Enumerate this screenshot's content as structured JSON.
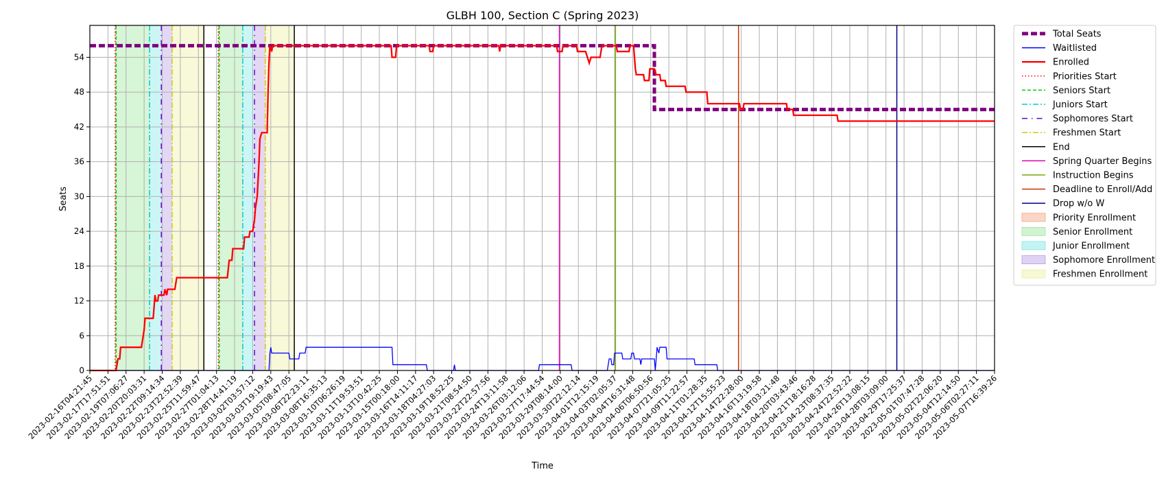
{
  "chart_data": {
    "type": "line",
    "title": "GLBH 100, Section C (Spring 2023)",
    "xlabel": "Time",
    "ylabel": "Seats",
    "ylim": [
      0,
      59.5
    ],
    "yticks": [
      0,
      6,
      12,
      18,
      24,
      30,
      36,
      42,
      48,
      54
    ],
    "xticks": [
      "2023-02-16T04:21:45",
      "2023-02-17T17:51:51",
      "2023-02-19T07:06:27",
      "2023-02-20T20:03:31",
      "2023-02-22T09:14:34",
      "2023-02-23T22:52:39",
      "2023-02-25T11:59:47",
      "2023-02-27T01:04:13",
      "2023-02-28T14:41:19",
      "2023-03-02T03:57:12",
      "2023-03-03T19:19:43",
      "2023-03-05T08:47:05",
      "2023-03-06T22:23:11",
      "2023-03-08T16:35:13",
      "2023-03-10T06:26:19",
      "2023-03-11T19:53:51",
      "2023-03-13T10:42:25",
      "2023-03-15T00:18:00",
      "2023-03-16T14:11:17",
      "2023-03-18T04:27:03",
      "2023-03-19T18:52:25",
      "2023-03-21T08:54:50",
      "2023-03-22T22:57:56",
      "2023-03-24T13:11:58",
      "2023-03-26T03:12:06",
      "2023-03-27T17:44:54",
      "2023-03-29T08:14:00",
      "2023-03-30T22:12:14",
      "2023-04-01T12:15:19",
      "2023-04-03T02:05:37",
      "2023-04-04T16:31:48",
      "2023-04-06T06:50:56",
      "2023-04-07T21:05:25",
      "2023-04-09T11:22:57",
      "2023-04-11T01:28:35",
      "2023-04-12T15:55:23",
      "2023-04-14T22:28:00",
      "2023-04-16T13:19:58",
      "2023-04-18T03:21:48",
      "2023-04-20T03:43:46",
      "2023-04-21T18:16:28",
      "2023-04-23T08:37:35",
      "2023-04-24T22:52:22",
      "2023-04-26T13:08:15",
      "2023-04-28T03:09:00",
      "2023-04-29T17:25:37",
      "2023-05-01T07:47:28",
      "2023-05-02T22:06:20",
      "2023-05-04T12:14:50",
      "2023-05-06T02:27:11",
      "2023-05-07T16:39:26"
    ],
    "x_index_range": [
      0,
      50
    ],
    "grid": true,
    "legend_placement": "outside-right",
    "series": [
      {
        "name": "Total Seats",
        "style": "dashed",
        "color": "#800080",
        "points": [
          [
            0,
            56
          ],
          [
            31.2,
            56
          ],
          [
            31.2,
            45
          ],
          [
            50,
            45
          ]
        ]
      },
      {
        "name": "Enrolled",
        "style": "solid",
        "color": "#ff0000",
        "points": [
          [
            0,
            0
          ],
          [
            1.45,
            0
          ],
          [
            1.5,
            1
          ],
          [
            1.55,
            2
          ],
          [
            1.65,
            2
          ],
          [
            1.7,
            4
          ],
          [
            2.85,
            4
          ],
          [
            2.9,
            5
          ],
          [
            2.95,
            6
          ],
          [
            3.0,
            7
          ],
          [
            3.05,
            9
          ],
          [
            3.5,
            9
          ],
          [
            3.55,
            11
          ],
          [
            3.6,
            13
          ],
          [
            3.65,
            12
          ],
          [
            3.75,
            12
          ],
          [
            3.8,
            13
          ],
          [
            4.1,
            13
          ],
          [
            4.15,
            14
          ],
          [
            4.25,
            13
          ],
          [
            4.3,
            14
          ],
          [
            4.7,
            14
          ],
          [
            4.8,
            16
          ],
          [
            7.6,
            16
          ],
          [
            7.7,
            19
          ],
          [
            7.85,
            19
          ],
          [
            7.9,
            21
          ],
          [
            8.5,
            21
          ],
          [
            8.55,
            23
          ],
          [
            8.8,
            23
          ],
          [
            8.85,
            24
          ],
          [
            9.0,
            24
          ],
          [
            9.1,
            26
          ],
          [
            9.15,
            28
          ],
          [
            9.25,
            30
          ],
          [
            9.3,
            33
          ],
          [
            9.35,
            36
          ],
          [
            9.4,
            40
          ],
          [
            9.5,
            41
          ],
          [
            9.8,
            41
          ],
          [
            9.85,
            48
          ],
          [
            9.9,
            53
          ],
          [
            9.95,
            56
          ],
          [
            10.05,
            55
          ],
          [
            10.1,
            56
          ],
          [
            16.65,
            56
          ],
          [
            16.7,
            54
          ],
          [
            16.9,
            54
          ],
          [
            16.95,
            56
          ],
          [
            18.75,
            56
          ],
          [
            18.8,
            55
          ],
          [
            18.95,
            55
          ],
          [
            19.0,
            56
          ],
          [
            22.6,
            56
          ],
          [
            22.65,
            55
          ],
          [
            22.7,
            56
          ],
          [
            25.8,
            56
          ],
          [
            25.85,
            55
          ],
          [
            26.1,
            55
          ],
          [
            26.15,
            56
          ],
          [
            26.9,
            56
          ],
          [
            26.95,
            55
          ],
          [
            27.4,
            55
          ],
          [
            27.5,
            54
          ],
          [
            27.6,
            53
          ],
          [
            27.7,
            54
          ],
          [
            28.2,
            54
          ],
          [
            28.3,
            56
          ],
          [
            29.1,
            56
          ],
          [
            29.15,
            55
          ],
          [
            29.8,
            55
          ],
          [
            29.85,
            56
          ],
          [
            30.05,
            56
          ],
          [
            30.1,
            54
          ],
          [
            30.15,
            52
          ],
          [
            30.2,
            51
          ],
          [
            30.6,
            51
          ],
          [
            30.65,
            50
          ],
          [
            30.9,
            50
          ],
          [
            30.95,
            52
          ],
          [
            31.2,
            52
          ],
          [
            31.3,
            51
          ],
          [
            31.5,
            51
          ],
          [
            31.55,
            50
          ],
          [
            31.8,
            50
          ],
          [
            31.85,
            49
          ],
          [
            32.9,
            49
          ],
          [
            32.95,
            48
          ],
          [
            34.1,
            48
          ],
          [
            34.15,
            46
          ],
          [
            35.9,
            46
          ],
          [
            35.95,
            45
          ],
          [
            36.1,
            45
          ],
          [
            36.15,
            46
          ],
          [
            38.5,
            46
          ],
          [
            38.55,
            45
          ],
          [
            38.85,
            45
          ],
          [
            38.9,
            44
          ],
          [
            41.3,
            44
          ],
          [
            41.35,
            43
          ],
          [
            50,
            43
          ]
        ]
      },
      {
        "name": "Waitlisted",
        "style": "solid",
        "color": "#0000ff",
        "points": [
          [
            0,
            0
          ],
          [
            9.9,
            0
          ],
          [
            9.95,
            3
          ],
          [
            10.0,
            4
          ],
          [
            10.05,
            3
          ],
          [
            11.0,
            3
          ],
          [
            11.05,
            2
          ],
          [
            11.55,
            2
          ],
          [
            11.6,
            3
          ],
          [
            11.9,
            3
          ],
          [
            11.95,
            4
          ],
          [
            16.7,
            4
          ],
          [
            16.75,
            1
          ],
          [
            18.6,
            1
          ],
          [
            18.65,
            0
          ],
          [
            20.1,
            0
          ],
          [
            20.15,
            1
          ],
          [
            20.2,
            0
          ],
          [
            24.8,
            0
          ],
          [
            24.85,
            1
          ],
          [
            26.6,
            1
          ],
          [
            26.65,
            0
          ],
          [
            28.6,
            0
          ],
          [
            28.7,
            2
          ],
          [
            28.8,
            2
          ],
          [
            28.85,
            1
          ],
          [
            28.95,
            1
          ],
          [
            29.0,
            3
          ],
          [
            29.4,
            3
          ],
          [
            29.45,
            2
          ],
          [
            29.9,
            2
          ],
          [
            29.95,
            3
          ],
          [
            30.05,
            3
          ],
          [
            30.1,
            2
          ],
          [
            30.4,
            2
          ],
          [
            30.45,
            1
          ],
          [
            30.5,
            2
          ],
          [
            31.2,
            2
          ],
          [
            31.25,
            0
          ],
          [
            31.3,
            2
          ],
          [
            31.35,
            4
          ],
          [
            31.45,
            3
          ],
          [
            31.5,
            4
          ],
          [
            31.85,
            4
          ],
          [
            31.9,
            2
          ],
          [
            33.4,
            2
          ],
          [
            33.45,
            1
          ],
          [
            34.65,
            1
          ],
          [
            34.7,
            0
          ],
          [
            50,
            0
          ]
        ]
      }
    ],
    "event_lines": [
      {
        "name": "Priorities Start",
        "x": 1.4,
        "color": "#ff0000",
        "style": "dotted"
      },
      {
        "name": "Seniors Start",
        "x": 1.45,
        "color": "#00cc00",
        "style": "dashed"
      },
      {
        "name": "Juniors Start",
        "x": 3.3,
        "color": "#00cccc",
        "style": "dashdot"
      },
      {
        "name": "Sophomores Start",
        "x": 3.95,
        "color": "#6600cc",
        "style": "dashdotsparse"
      },
      {
        "name": "Freshmen Start",
        "x": 4.55,
        "color": "#cccc00",
        "style": "dashdot"
      },
      {
        "name": "End",
        "x": 6.3,
        "color": "#000000",
        "style": "solid"
      },
      {
        "name": "Priorities Start",
        "x": 7.1,
        "color": "#ff0000",
        "style": "dotted"
      },
      {
        "name": "Seniors Start",
        "x": 7.15,
        "color": "#00cc00",
        "style": "dashed"
      },
      {
        "name": "Juniors Start",
        "x": 8.45,
        "color": "#00cccc",
        "style": "dashdot"
      },
      {
        "name": "Sophomores Start",
        "x": 9.1,
        "color": "#6600cc",
        "style": "dashdotsparse"
      },
      {
        "name": "Freshmen Start",
        "x": 9.7,
        "color": "#cccc00",
        "style": "dashdot"
      },
      {
        "name": "End",
        "x": 11.3,
        "color": "#000000",
        "style": "solid"
      },
      {
        "name": "Spring Quarter Begins",
        "x": 25.95,
        "color": "#dd00aa",
        "style": "solid"
      },
      {
        "name": "Instruction Begins",
        "x": 29.05,
        "color": "#77aa00",
        "style": "solid"
      },
      {
        "name": "Deadline to Enroll/Add",
        "x": 35.85,
        "color": "#cc3300",
        "style": "solid"
      },
      {
        "name": "Drop w/o W",
        "x": 44.6,
        "color": "#000088",
        "style": "solid"
      }
    ],
    "enrollment_periods": [
      {
        "name": "Priority Enrollment",
        "start": 1.4,
        "end": 1.45,
        "color": "#f4a582"
      },
      {
        "name": "Senior Enrollment",
        "start": 1.45,
        "end": 3.3,
        "color": "#9be59b"
      },
      {
        "name": "Junior Enrollment",
        "start": 3.3,
        "end": 3.95,
        "color": "#7fe5e5"
      },
      {
        "name": "Sophomore Enrollment",
        "start": 3.95,
        "end": 4.55,
        "color": "#b99be5"
      },
      {
        "name": "Freshmen Enrollment",
        "start": 4.55,
        "end": 6.3,
        "color": "#eef0a0"
      },
      {
        "name": "Priority Enrollment",
        "start": 7.1,
        "end": 7.15,
        "color": "#f4a582"
      },
      {
        "name": "Senior Enrollment",
        "start": 7.15,
        "end": 8.45,
        "color": "#9be59b"
      },
      {
        "name": "Junior Enrollment",
        "start": 8.45,
        "end": 9.1,
        "color": "#7fe5e5"
      },
      {
        "name": "Sophomore Enrollment",
        "start": 9.1,
        "end": 9.7,
        "color": "#b99be5"
      },
      {
        "name": "Freshmen Enrollment",
        "start": 9.7,
        "end": 11.3,
        "color": "#eef0a0"
      }
    ],
    "legend": [
      {
        "label": "Total Seats",
        "kind": "line",
        "color": "#800080",
        "style": "thickdash"
      },
      {
        "label": "Waitlisted",
        "kind": "line",
        "color": "#0000ff",
        "style": "solid"
      },
      {
        "label": "Enrolled",
        "kind": "line",
        "color": "#ff0000",
        "style": "thick"
      },
      {
        "label": "Priorities Start",
        "kind": "line",
        "color": "#ff0000",
        "style": "dotted"
      },
      {
        "label": "Seniors Start",
        "kind": "line",
        "color": "#00cc00",
        "style": "dashed"
      },
      {
        "label": "Juniors Start",
        "kind": "line",
        "color": "#00cccc",
        "style": "dashdot"
      },
      {
        "label": "Sophomores Start",
        "kind": "line",
        "color": "#6600cc",
        "style": "dashdotsparse"
      },
      {
        "label": "Freshmen Start",
        "kind": "line",
        "color": "#cccc00",
        "style": "dashdot"
      },
      {
        "label": "End",
        "kind": "line",
        "color": "#000000",
        "style": "solid"
      },
      {
        "label": "Spring Quarter Begins",
        "kind": "line",
        "color": "#dd00aa",
        "style": "solid"
      },
      {
        "label": "Instruction Begins",
        "kind": "line",
        "color": "#77aa00",
        "style": "solid"
      },
      {
        "label": "Deadline to Enroll/Add",
        "kind": "line",
        "color": "#cc3300",
        "style": "solid"
      },
      {
        "label": "Drop w/o W",
        "kind": "line",
        "color": "#000088",
        "style": "solid"
      },
      {
        "label": "Priority Enrollment",
        "kind": "patch",
        "color": "#f4a582"
      },
      {
        "label": "Senior Enrollment",
        "kind": "patch",
        "color": "#9be59b"
      },
      {
        "label": "Junior Enrollment",
        "kind": "patch",
        "color": "#7fe5e5"
      },
      {
        "label": "Sophomore Enrollment",
        "kind": "patch",
        "color": "#b99be5"
      },
      {
        "label": "Freshmen Enrollment",
        "kind": "patch",
        "color": "#eef0a0"
      }
    ]
  }
}
